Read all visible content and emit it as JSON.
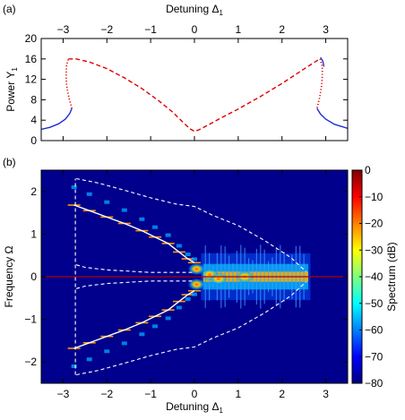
{
  "chart_data": [
    {
      "panel_label": "(a)",
      "type": "line",
      "xlabel": "Detuning Δ",
      "xlabel_sub": "1",
      "ylabel": "Power Y",
      "ylabel_sub": "1",
      "xlim": [
        -3.5,
        3.5
      ],
      "ylim": [
        0,
        20
      ],
      "xticks": [
        -3,
        -2,
        -1,
        0,
        1,
        2,
        3
      ],
      "yticks": [
        0,
        4,
        8,
        12,
        16,
        20
      ],
      "xtick_labels": [
        "−3",
        "−2",
        "−1",
        "0",
        "1",
        "2",
        "3"
      ],
      "ytick_labels": [
        "0",
        "4",
        "8",
        "12",
        "16",
        "20"
      ],
      "xaxis_position": "top",
      "series": [
        {
          "style": "solid",
          "color": "#1f2fd6",
          "points": [
            [
              -3.5,
              2.2
            ],
            [
              -3.3,
              2.6
            ],
            [
              -3.1,
              3.3
            ],
            [
              -2.95,
              4.2
            ],
            [
              -2.85,
              5.3
            ],
            [
              -2.8,
              6.3
            ]
          ]
        },
        {
          "style": "dotted",
          "color": "#e00000",
          "points": [
            [
              -2.8,
              6.3
            ],
            [
              -2.87,
              8.5
            ],
            [
              -2.92,
              10.8
            ],
            [
              -2.93,
              13
            ],
            [
              -2.92,
              14.8
            ],
            [
              -2.88,
              16
            ]
          ]
        },
        {
          "style": "dashed",
          "color": "#e00000",
          "points": [
            [
              -2.88,
              16
            ],
            [
              -2.7,
              16
            ],
            [
              -2.4,
              15.4
            ],
            [
              -2.0,
              14.1
            ],
            [
              -1.6,
              12.3
            ],
            [
              -1.2,
              10.2
            ],
            [
              -0.8,
              7.7
            ],
            [
              -0.5,
              5.6
            ],
            [
              -0.25,
              3.5
            ],
            [
              -0.1,
              2.3
            ],
            [
              0,
              1.8
            ],
            [
              0.1,
              2.1
            ],
            [
              0.3,
              3
            ],
            [
              0.6,
              4.4
            ],
            [
              1.0,
              6.2
            ],
            [
              1.5,
              8.6
            ],
            [
              2.0,
              11.2
            ],
            [
              2.5,
              14
            ],
            [
              2.75,
              15.4
            ],
            [
              2.87,
              16
            ]
          ]
        },
        {
          "style": "dotted",
          "color": "#e00000",
          "points": [
            [
              2.87,
              16
            ],
            [
              2.92,
              14.5
            ],
            [
              2.92,
              12.5
            ],
            [
              2.9,
              10.5
            ],
            [
              2.86,
              8.4
            ],
            [
              2.8,
              6.3
            ]
          ]
        },
        {
          "style": "solid",
          "color": "#1f2fd6",
          "points": [
            [
              2.88,
              16.3
            ],
            [
              2.93,
              15.6
            ],
            [
              2.96,
              14.5
            ]
          ]
        },
        {
          "style": "solid",
          "color": "#1f2fd6",
          "points": [
            [
              2.8,
              6.3
            ],
            [
              2.88,
              5.2
            ],
            [
              3.0,
              4.2
            ],
            [
              3.2,
              3.2
            ],
            [
              3.5,
              2.4
            ]
          ]
        }
      ]
    },
    {
      "panel_label": "(b)",
      "type": "heatmap",
      "xlabel": "Detuning Δ",
      "xlabel_sub": "1",
      "ylabel": "Frequency Ω",
      "colorbar_label": "Spectrum (dB)",
      "xlim": [
        -3.5,
        3.5
      ],
      "ylim": [
        -2.5,
        2.5
      ],
      "xticks": [
        -3,
        -2,
        -1,
        0,
        1,
        2,
        3
      ],
      "yticks": [
        -2,
        -1,
        0,
        1,
        2
      ],
      "xtick_labels": [
        "−3",
        "−2",
        "−1",
        "0",
        "1",
        "2",
        "3"
      ],
      "ytick_labels": [
        "−2",
        "−1",
        "0",
        "1",
        "2"
      ],
      "colorbar_ticks": [
        0,
        -10,
        -20,
        -30,
        -40,
        -50,
        -60,
        -70,
        -80
      ],
      "colorbar_tick_labels": [
        "0",
        "−10",
        "−20",
        "−30",
        "−40",
        "−50",
        "−60",
        "−70",
        "−80"
      ],
      "colorbar_range": [
        -80,
        0
      ],
      "background_color": "#00008c",
      "colormap": [
        "#00007f",
        "#0000ff",
        "#007fff",
        "#00ffff",
        "#7fff7f",
        "#ffff00",
        "#ff7f00",
        "#ff0000",
        "#7f0000"
      ],
      "carrier_line": {
        "y": 0,
        "color": "#b00000"
      },
      "upper_sideband": [
        [
          -2.75,
          1.68
        ],
        [
          -2.4,
          1.55
        ],
        [
          -2.0,
          1.4
        ],
        [
          -1.6,
          1.25
        ],
        [
          -1.2,
          1.08
        ],
        [
          -0.9,
          0.93
        ],
        [
          -0.6,
          0.78
        ],
        [
          -0.35,
          0.58
        ],
        [
          -0.15,
          0.42
        ],
        [
          0,
          0.33
        ]
      ],
      "lower_sideband": [
        [
          -2.75,
          -1.68
        ],
        [
          -2.4,
          -1.55
        ],
        [
          -2.0,
          -1.4
        ],
        [
          -1.6,
          -1.25
        ],
        [
          -1.2,
          -1.08
        ],
        [
          -0.9,
          -0.93
        ],
        [
          -0.6,
          -0.78
        ],
        [
          -0.35,
          -0.58
        ],
        [
          -0.15,
          -0.42
        ],
        [
          0,
          -0.33
        ]
      ],
      "bound_upper_outer": [
        [
          -2.7,
          2.3
        ],
        [
          -2.2,
          2.2
        ],
        [
          -1.5,
          2.0
        ],
        [
          -1.0,
          1.85
        ],
        [
          -0.4,
          1.7
        ],
        [
          0,
          1.65
        ],
        [
          0.4,
          1.45
        ],
        [
          1.0,
          1.2
        ],
        [
          1.6,
          0.85
        ],
        [
          2.2,
          0.45
        ],
        [
          2.55,
          0.12
        ]
      ],
      "bound_upper_inner": [
        [
          -2.7,
          0.28
        ],
        [
          -2.5,
          0.22
        ],
        [
          -2.0,
          0.16
        ],
        [
          -1.0,
          0.1
        ],
        [
          0,
          0.1
        ]
      ],
      "bound_lower_outer": [
        [
          -2.7,
          -2.3
        ],
        [
          -2.2,
          -2.2
        ],
        [
          -1.5,
          -2.0
        ],
        [
          -1.0,
          -1.85
        ],
        [
          -0.4,
          -1.7
        ],
        [
          0,
          -1.65
        ],
        [
          0.4,
          -1.45
        ],
        [
          1.0,
          -1.2
        ],
        [
          1.6,
          -0.85
        ],
        [
          2.2,
          -0.45
        ],
        [
          2.55,
          -0.12
        ]
      ],
      "bound_lower_inner": [
        [
          -2.7,
          -0.28
        ],
        [
          -2.5,
          -0.22
        ],
        [
          -2.0,
          -0.16
        ],
        [
          -1.0,
          -0.1
        ],
        [
          0,
          -0.1
        ]
      ],
      "left_end_line": {
        "x": -2.72,
        "y": [
          -2.3,
          2.3
        ]
      }
    }
  ]
}
